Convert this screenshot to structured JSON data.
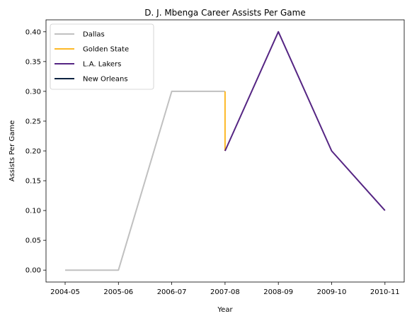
{
  "chart_data": {
    "type": "line",
    "title": "D. J. Mbenga Career Assists Per Game",
    "xlabel": "Year",
    "ylabel": "Assists Per Game",
    "categories": [
      "2004-05",
      "2005-06",
      "2006-07",
      "2007-08",
      "2008-09",
      "2009-10",
      "2010-11"
    ],
    "y_ticks": [
      "0.00",
      "0.05",
      "0.10",
      "0.15",
      "0.20",
      "0.25",
      "0.30",
      "0.35",
      "0.40"
    ],
    "ylim": [
      -0.02,
      0.42
    ],
    "grid": false,
    "legend_position": "top-left",
    "series": [
      {
        "name": "Dallas",
        "color": "#c0c0c0",
        "points": [
          [
            "2004-05",
            0.0
          ],
          [
            "2005-06",
            0.0
          ],
          [
            "2006-07",
            0.3
          ],
          [
            "2007-08",
            0.3
          ]
        ]
      },
      {
        "name": "Golden State",
        "color": "#fdb927",
        "points": [
          [
            "2007-08",
            0.3
          ],
          [
            "2007-08",
            0.2
          ]
        ]
      },
      {
        "name": "L.A. Lakers",
        "color": "#552583",
        "points": [
          [
            "2007-08",
            0.2
          ],
          [
            "2008-09",
            0.4
          ],
          [
            "2009-10",
            0.2
          ],
          [
            "2010-11",
            0.1
          ]
        ]
      },
      {
        "name": "New Orleans",
        "color": "#0c2340",
        "points": []
      }
    ]
  }
}
